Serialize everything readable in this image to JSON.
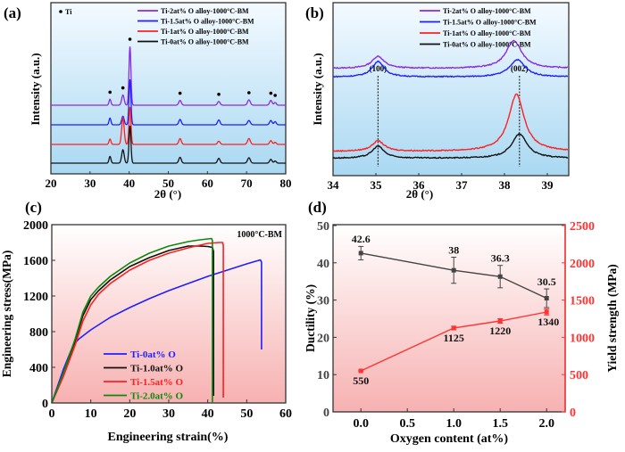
{
  "chart_data": [
    {
      "panel": "(a)",
      "type": "line",
      "title": "",
      "xlabel": "2θ (°)",
      "ylabel": "Intensity (a.u.)",
      "xlim": [
        20,
        80
      ],
      "xticks": [
        20,
        30,
        40,
        50,
        60,
        70,
        80
      ],
      "ytick_labels": false,
      "marker_legend": "Ti",
      "peak_markers_2theta": [
        35.1,
        38.4,
        40.2,
        53.0,
        62.9,
        70.6,
        76.2,
        77.3
      ],
      "legend_position": "top-right",
      "series": [
        {
          "name": "Ti-2at% O alloy-1000°C-BM",
          "color": "#8a2be2",
          "offset": 3
        },
        {
          "name": "Ti-1.5at% O alloy-1000°C-BM",
          "color": "#1f1fff",
          "offset": 2
        },
        {
          "name": "Ti-1at% O alloy-1000°C-BM",
          "color": "#ff2020",
          "offset": 1
        },
        {
          "name": "Ti-0at% O alloy-1000°C-BM",
          "color": "#111111",
          "offset": 0
        }
      ],
      "peaks": [
        {
          "pos": 35.1,
          "h": [
            0.22,
            0.25,
            0.2,
            0.25
          ]
        },
        {
          "pos": 38.4,
          "h": [
            0.38,
            0.32,
            1.0,
            0.5
          ]
        },
        {
          "pos": 40.2,
          "h": [
            2.2,
            1.7,
            1.4,
            1.4
          ]
        },
        {
          "pos": 53.0,
          "h": [
            0.18,
            0.2,
            0.22,
            0.22
          ]
        },
        {
          "pos": 62.9,
          "h": [
            0.14,
            0.18,
            0.12,
            0.18
          ]
        },
        {
          "pos": 70.6,
          "h": [
            0.2,
            0.16,
            0.22,
            0.2
          ]
        },
        {
          "pos": 76.2,
          "h": [
            0.18,
            0.16,
            0.14,
            0.14
          ]
        },
        {
          "pos": 77.3,
          "h": [
            0.1,
            0.12,
            0.08,
            0.08
          ]
        }
      ]
    },
    {
      "panel": "(b)",
      "type": "line",
      "xlabel": "2θ (°)",
      "ylabel": "Intensity (a.u.)",
      "xlim": [
        34,
        39.5
      ],
      "xticks": [
        34,
        35,
        36,
        37,
        38,
        39
      ],
      "annotations": [
        {
          "text": "(100)",
          "x": 35.05
        },
        {
          "text": "(002)",
          "x": 38.35
        }
      ],
      "legend_position": "top-right",
      "series": [
        {
          "name": "Ti-2at% O alloy-1000°C-BM",
          "color": "#8a2be2",
          "base": 0.62,
          "p100": {
            "x": 35.05,
            "h": 0.07
          },
          "p002": {
            "x": 38.22,
            "h": 0.16
          }
        },
        {
          "name": "Ti-1.5at% O alloy-1000°C-BM",
          "color": "#1f1fff",
          "base": 0.57,
          "p100": {
            "x": 35.05,
            "h": 0.09
          },
          "p002": {
            "x": 38.3,
            "h": 0.1
          }
        },
        {
          "name": "Ti-1at% O alloy-1000°C-BM",
          "color": "#ff2020",
          "base": 0.14,
          "p100": {
            "x": 35.05,
            "h": 0.06
          },
          "p002": {
            "x": 38.28,
            "h": 0.33
          }
        },
        {
          "name": "Ti-0at% O alloy-1000°C-BM",
          "color": "#111111",
          "base": 0.1,
          "p100": {
            "x": 35.05,
            "h": 0.07
          },
          "p002": {
            "x": 38.35,
            "h": 0.14
          }
        }
      ]
    },
    {
      "panel": "(c)",
      "type": "line",
      "xlabel": "Engineering strain(%)",
      "ylabel": "Engineering stress(MPa)",
      "xlim": [
        0,
        60
      ],
      "ylim": [
        0,
        2000
      ],
      "xticks": [
        0,
        10,
        20,
        30,
        40,
        50,
        60
      ],
      "yticks": [
        0,
        400,
        800,
        1200,
        1600,
        2000
      ],
      "annotation": "1000°C-BM",
      "legend_position": "bottom-left",
      "series": [
        {
          "name": "Ti-0at% O",
          "color": "#1f1fff",
          "x": [
            0,
            3,
            5.5,
            7,
            10,
            15,
            20,
            25,
            30,
            35,
            40,
            45,
            50,
            53.5,
            53.8,
            53.8
          ],
          "y": [
            0,
            380,
            650,
            720,
            820,
            960,
            1070,
            1170,
            1260,
            1340,
            1420,
            1490,
            1560,
            1605,
            1580,
            600
          ]
        },
        {
          "name": "Ti-1.0at% O",
          "color": "#111111",
          "x": [
            0,
            3,
            6,
            8,
            10,
            12,
            15,
            20,
            25,
            30,
            35,
            38,
            40,
            41.2,
            41.5,
            41.5
          ],
          "y": [
            0,
            330,
            700,
            980,
            1160,
            1260,
            1380,
            1530,
            1630,
            1710,
            1760,
            1760,
            1755,
            1745,
            1700,
            80
          ]
        },
        {
          "name": "Ti-1.5at% O",
          "color": "#ff2020",
          "x": [
            0,
            3,
            6,
            8,
            10,
            12,
            15,
            20,
            25,
            30,
            35,
            40,
            43,
            43.8,
            44,
            44
          ],
          "y": [
            0,
            300,
            650,
            920,
            1100,
            1220,
            1340,
            1490,
            1600,
            1680,
            1740,
            1790,
            1800,
            1800,
            1770,
            60
          ]
        },
        {
          "name": "Ti-2.0at% O",
          "color": "#0a8a0a",
          "x": [
            0,
            3,
            6,
            8,
            10,
            12,
            15,
            20,
            25,
            30,
            35,
            38,
            40,
            41,
            41.2,
            41.2
          ],
          "y": [
            0,
            340,
            720,
            1020,
            1200,
            1300,
            1420,
            1570,
            1680,
            1760,
            1810,
            1830,
            1840,
            1845,
            1820,
            0
          ]
        }
      ]
    },
    {
      "panel": "(d)",
      "type": "line",
      "xlabel": "Oxygen content (at%)",
      "ylabel": "Ductility (%)",
      "ylabel_right": "Yield strength (MPa)",
      "xlim": [
        -0.3,
        2.2
      ],
      "ylim": [
        0,
        50
      ],
      "ylim_right": [
        0,
        2500
      ],
      "xticks": [
        "0.0",
        "0.5",
        "1.0",
        "1.5",
        "2.0"
      ],
      "yticks": [
        0,
        10,
        20,
        30,
        40,
        50
      ],
      "yticks_right": [
        0,
        500,
        1000,
        1500,
        2000,
        2500
      ],
      "x": [
        0.0,
        1.0,
        1.5,
        2.0
      ],
      "series": [
        {
          "name": "Ductility",
          "axis": "left",
          "color": "#444444",
          "values": [
            42.6,
            38,
            36.3,
            30.5
          ],
          "errors": [
            1.8,
            3.5,
            3.0,
            2.5
          ],
          "labels": [
            "42.6",
            "38",
            "36.3",
            "30.5"
          ]
        },
        {
          "name": "Yield strength",
          "axis": "right",
          "color": "#ff3333",
          "values": [
            550,
            1125,
            1220,
            1340
          ],
          "errors": [
            10,
            25,
            30,
            40
          ],
          "labels": [
            "550",
            "1125",
            "1220",
            "1340"
          ]
        }
      ]
    }
  ],
  "panel_labels": [
    "(a)",
    "(b)",
    "(c)",
    "(d)"
  ]
}
